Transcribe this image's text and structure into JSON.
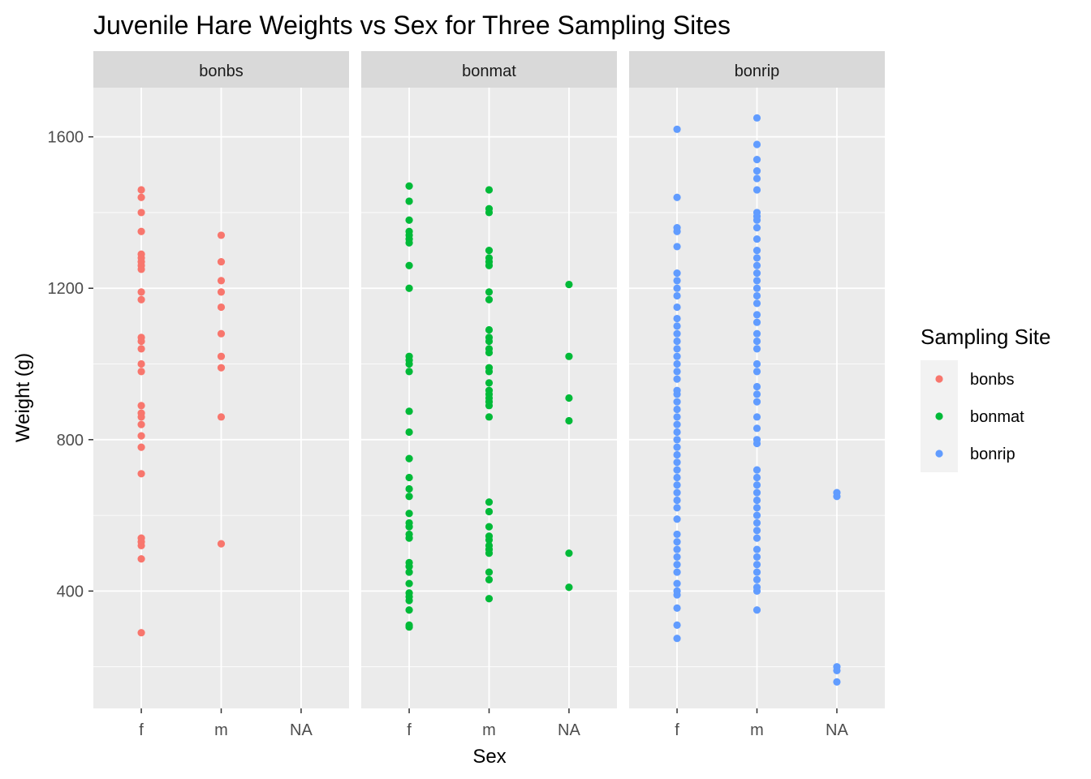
{
  "chart_data": {
    "type": "scatter",
    "title": "Juvenile Hare Weights vs Sex for Three Sampling Sites",
    "xlabel": "Sex",
    "ylabel": "Weight (g)",
    "x_categories": [
      "f",
      "m",
      "NA"
    ],
    "ylim": [
      90,
      1730
    ],
    "y_ticks": [
      400,
      800,
      1200,
      1600
    ],
    "grid": true,
    "legend": {
      "title": "Sampling Site",
      "position": "right",
      "entries": [
        {
          "name": "bonbs",
          "color": "#F8766D"
        },
        {
          "name": "bonmat",
          "color": "#00BA38"
        },
        {
          "name": "bonrip",
          "color": "#619CFF"
        }
      ]
    },
    "facets": [
      {
        "label": "bonbs",
        "color": "#F8766D",
        "series": [
          {
            "x": "f",
            "y": [
              1460,
              1440,
              1400,
              1350,
              1290,
              1280,
              1270,
              1260,
              1250,
              1190,
              1170,
              1070,
              1060,
              1040,
              1000,
              980,
              890,
              870,
              860,
              840,
              810,
              780,
              710,
              540,
              530,
              520,
              485,
              290
            ]
          },
          {
            "x": "m",
            "y": [
              1340,
              1270,
              1220,
              1190,
              1150,
              1080,
              1020,
              990,
              860,
              525
            ]
          },
          {
            "x": "NA",
            "y": []
          }
        ]
      },
      {
        "label": "bonmat",
        "color": "#00BA38",
        "series": [
          {
            "x": "f",
            "y": [
              1470,
              1430,
              1380,
              1350,
              1340,
              1330,
              1320,
              1260,
              1200,
              1020,
              1010,
              1000,
              980,
              875,
              820,
              750,
              700,
              670,
              650,
              605,
              580,
              570,
              550,
              540,
              475,
              465,
              450,
              420,
              395,
              385,
              375,
              350,
              310,
              305
            ]
          },
          {
            "x": "m",
            "y": [
              1460,
              1410,
              1400,
              1300,
              1280,
              1270,
              1260,
              1190,
              1170,
              1090,
              1070,
              1060,
              1040,
              1030,
              990,
              980,
              950,
              930,
              920,
              910,
              900,
              890,
              860,
              635,
              610,
              570,
              545,
              535,
              520,
              510,
              500,
              450,
              430,
              380
            ]
          },
          {
            "x": "NA",
            "y": [
              1210,
              1020,
              910,
              850,
              500,
              410
            ]
          }
        ]
      },
      {
        "label": "bonrip",
        "color": "#619CFF",
        "series": [
          {
            "x": "f",
            "y": [
              1620,
              1440,
              1360,
              1350,
              1310,
              1240,
              1220,
              1200,
              1180,
              1150,
              1120,
              1100,
              1080,
              1060,
              1040,
              1020,
              1000,
              980,
              960,
              930,
              920,
              900,
              880,
              860,
              840,
              820,
              800,
              780,
              760,
              740,
              720,
              700,
              680,
              660,
              640,
              620,
              590,
              550,
              530,
              510,
              490,
              470,
              450,
              420,
              400,
              390,
              355,
              310,
              275
            ]
          },
          {
            "x": "m",
            "y": [
              1650,
              1580,
              1540,
              1510,
              1490,
              1460,
              1400,
              1390,
              1380,
              1360,
              1330,
              1300,
              1280,
              1260,
              1240,
              1220,
              1200,
              1180,
              1160,
              1130,
              1110,
              1080,
              1060,
              1040,
              1000,
              980,
              940,
              920,
              900,
              860,
              830,
              800,
              790,
              720,
              700,
              680,
              660,
              640,
              620,
              600,
              580,
              560,
              540,
              510,
              490,
              470,
              450,
              430,
              410,
              400,
              350
            ]
          },
          {
            "x": "NA",
            "y": [
              660,
              650,
              200,
              190,
              160
            ]
          }
        ]
      }
    ]
  }
}
